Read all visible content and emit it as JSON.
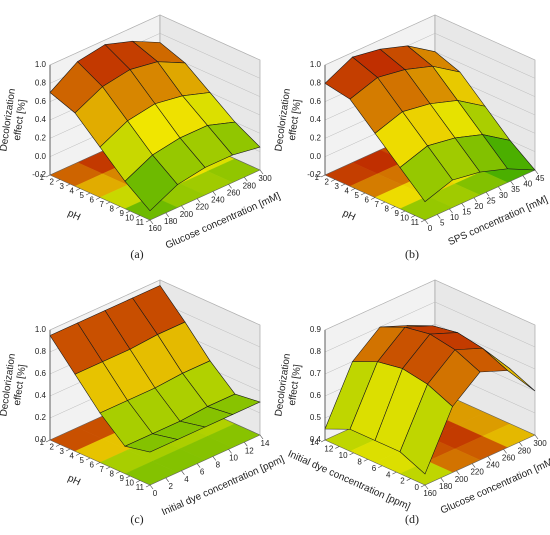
{
  "chart_data": [
    {
      "type": "surface",
      "panel_label": "(a)",
      "xlabel": "Glucose concentration [mM]",
      "ylabel": "pH",
      "zlabel": [
        "Decolorization",
        "effect [%]"
      ],
      "x": [
        160,
        195,
        230,
        265,
        300
      ],
      "y": [
        1,
        3.5,
        6,
        8.5,
        11
      ],
      "z": [
        [
          0.7,
          0.9,
          0.95,
          0.85,
          0.7
        ],
        [
          0.6,
          0.75,
          0.8,
          0.75,
          0.6
        ],
        [
          0.35,
          0.5,
          0.55,
          0.5,
          0.4
        ],
        [
          0.1,
          0.25,
          0.3,
          0.3,
          0.2
        ],
        [
          -0.1,
          0.05,
          0.1,
          0.1,
          0.05
        ]
      ],
      "xlim": [
        160,
        300
      ],
      "xticks": [
        160,
        180,
        200,
        220,
        240,
        260,
        280,
        300
      ],
      "ylim": [
        1,
        11
      ],
      "yticks": [
        1,
        2,
        3,
        4,
        5,
        6,
        7,
        8,
        9,
        10,
        11
      ],
      "zlim": [
        -0.2,
        1.0
      ],
      "zticks": [
        -0.2,
        {
          "value": 0,
          "label": "0.0"
        },
        0.2,
        0.4,
        0.6,
        0.8,
        {
          "value": 1,
          "label": "1.0"
        }
      ]
    },
    {
      "type": "surface",
      "panel_label": "(b)",
      "xlabel": "SPS concentration [mM]",
      "ylabel": "pH",
      "zlabel": [
        "Decolorization",
        "effect [%]"
      ],
      "x": [
        0,
        11.25,
        22.5,
        33.75,
        45
      ],
      "y": [
        1,
        3.5,
        6,
        8.5,
        11
      ],
      "z": [
        [
          0.8,
          0.95,
          0.9,
          0.8,
          0.6
        ],
        [
          0.75,
          0.85,
          0.8,
          0.7,
          0.5
        ],
        [
          0.5,
          0.6,
          0.55,
          0.45,
          0.25
        ],
        [
          0.25,
          0.35,
          0.3,
          0.2,
          0.0
        ],
        [
          0.0,
          0.1,
          0.05,
          -0.05,
          -0.2
        ]
      ],
      "xlim": [
        0,
        45
      ],
      "xticks": [
        0,
        5,
        10,
        15,
        20,
        25,
        30,
        35,
        40,
        45
      ],
      "ylim": [
        1,
        11
      ],
      "yticks": [
        1,
        2,
        3,
        4,
        5,
        6,
        7,
        8,
        9,
        10,
        11
      ],
      "zlim": [
        -0.2,
        1.0
      ],
      "zticks": [
        -0.2,
        {
          "value": 0,
          "label": "0.0"
        },
        0.2,
        0.4,
        0.6,
        0.8,
        {
          "value": 1,
          "label": "1.0"
        }
      ]
    },
    {
      "type": "surface",
      "panel_label": "(c)",
      "xlabel": "Initial dye concentration [ppm]",
      "ylabel": "pH",
      "zlabel": [
        "Decolorization",
        "effect [%]"
      ],
      "x": [
        0,
        3.5,
        7,
        10.5,
        14
      ],
      "y": [
        1,
        3.5,
        6,
        8.5,
        11
      ],
      "z": [
        [
          0.95,
          0.95,
          0.95,
          0.95,
          0.95
        ],
        [
          0.7,
          0.7,
          0.7,
          0.72,
          0.72
        ],
        [
          0.45,
          0.45,
          0.45,
          0.47,
          0.47
        ],
        [
          0.25,
          0.25,
          0.25,
          0.27,
          0.27
        ],
        [
          0.3,
          0.3,
          0.3,
          0.3,
          0.3
        ]
      ],
      "xlim": [
        0,
        14
      ],
      "xticks": [
        0,
        2,
        4,
        6,
        8,
        10,
        12,
        14
      ],
      "ylim": [
        1,
        11
      ],
      "yticks": [
        1,
        2,
        3,
        4,
        5,
        6,
        7,
        8,
        9,
        10,
        11
      ],
      "zlim": [
        0,
        1.0
      ],
      "zticks": [
        {
          "value": 0,
          "label": "0.0"
        },
        0.2,
        0.4,
        0.6,
        0.8,
        {
          "value": 1,
          "label": "1.0"
        }
      ]
    },
    {
      "type": "surface",
      "panel_label": "(d)",
      "xlabel": "Glucose concentration [mM]",
      "ylabel": "Initial dye concentration [ppm]",
      "zlabel": [
        "Decolorization",
        "effect [%]"
      ],
      "x": [
        160,
        195,
        230,
        265,
        300
      ],
      "y": [
        14,
        10.5,
        7,
        3.5,
        0
      ],
      "z": [
        [
          0.45,
          0.7,
          0.8,
          0.75,
          0.6
        ],
        [
          0.5,
          0.75,
          0.85,
          0.8,
          0.65
        ],
        [
          0.5,
          0.77,
          0.87,
          0.82,
          0.65
        ],
        [
          0.5,
          0.75,
          0.85,
          0.8,
          0.65
        ],
        [
          0.45,
          0.7,
          0.8,
          0.75,
          0.6
        ]
      ],
      "xlim": [
        160,
        300
      ],
      "xticks": [
        160,
        180,
        200,
        220,
        240,
        260,
        280,
        300
      ],
      "ylim": [
        14,
        0
      ],
      "yticks": [
        14,
        12,
        10,
        8,
        6,
        4,
        2,
        0
      ],
      "zlim": [
        0.4,
        0.9
      ],
      "zticks": [
        0.4,
        0.5,
        0.6,
        0.7,
        0.8,
        0.9
      ]
    }
  ]
}
